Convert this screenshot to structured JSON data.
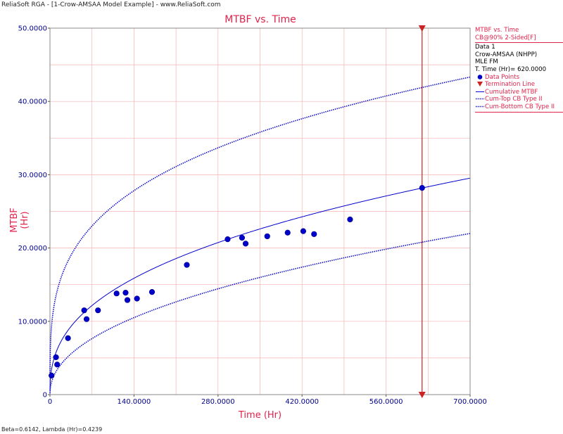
{
  "window": {
    "title": "ReliaSoft RGA - [1-Crow-AMSAA Model Example] - www.ReliaSoft.com"
  },
  "status": {
    "text": "Beta=0.6142, Lambda (Hr)=0.4239"
  },
  "legend": {
    "title": "MTBF vs. Time",
    "subtitle": "CB@90% 2-Sided[F]",
    "data_name": "Data 1",
    "model": "Crow-AMSAA (NHPP)",
    "method": "MLE FM",
    "term_time": "T. Time (Hr)= 620.0000",
    "entries": [
      "Data Points",
      "Termination Line",
      "Cumulative MTBF",
      "Cum-Top CB Type II",
      "Cum-Bottom CB Type II"
    ]
  },
  "colors": {
    "accent": "#e0234b",
    "series": "#0000cc",
    "grid": "#f4b3b3",
    "termination": "#cc2222"
  },
  "chart_data": {
    "type": "scatter",
    "title": "MTBF vs. Time",
    "xlabel": "Time (Hr)",
    "ylabel": "MTBF (Hr)",
    "xlim": [
      0,
      700
    ],
    "ylim": [
      0,
      50000
    ],
    "x_ticks": [
      "0",
      "140.0000",
      "280.0000",
      "420.0000",
      "560.0000",
      "700.0000"
    ],
    "y_ticks": [
      "0",
      "10.0000",
      "20.0000",
      "30.0000",
      "40.0000",
      "50.0000"
    ],
    "grid": true,
    "legend_position": "right",
    "termination_time": 620,
    "model": {
      "beta": 0.6142,
      "lambda": 0.4239
    },
    "series": [
      {
        "name": "Data Points",
        "style": "points",
        "x": [
          2.6,
          10,
          12,
          30,
          57,
          61,
          80,
          111,
          126,
          129,
          145,
          170,
          228,
          296,
          320,
          326,
          362,
          396,
          422,
          440,
          500,
          620
        ],
        "y": [
          2600,
          5100,
          4100,
          7700,
          11500,
          10300,
          11500,
          13800,
          13900,
          12900,
          13100,
          14000,
          17700,
          21200,
          21400,
          20600,
          21600,
          22100,
          22300,
          21900,
          23900,
          28200
        ]
      },
      {
        "name": "Cumulative MTBF",
        "style": "solid",
        "curve": {
          "coef": 2359,
          "exponent": 0.3858
        }
      },
      {
        "name": "Cum-Top CB Type II",
        "style": "dotted",
        "curve": {
          "coef": 7150,
          "exponent": 0.275
        }
      },
      {
        "name": "Cum-Bottom CB Type II",
        "style": "dotted",
        "curve": {
          "coef": 1087,
          "exponent": 0.459
        }
      }
    ]
  }
}
